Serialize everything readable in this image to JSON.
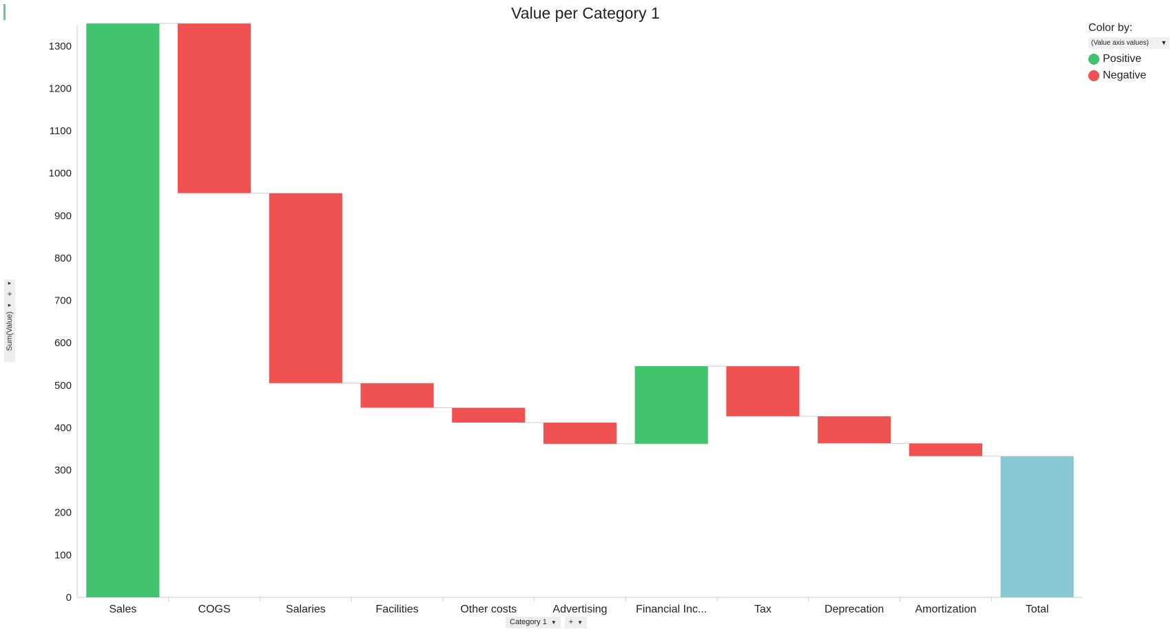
{
  "chart_data": {
    "type": "waterfall",
    "title": "Value per Category 1",
    "xlabel": "Category 1",
    "ylabel": "Sum(Value)",
    "ylim": [
      0,
      1350
    ],
    "yticks": [
      0,
      100,
      200,
      300,
      400,
      500,
      600,
      700,
      800,
      900,
      1000,
      1100,
      1200,
      1300
    ],
    "grid": false,
    "legend_position": "top-right",
    "categories": [
      "Sales",
      "COGS",
      "Salaries",
      "Facilities",
      "Other costs",
      "Advertising",
      "Financial Inc...",
      "Tax",
      "Deprecation",
      "Amortization",
      "Total"
    ],
    "values": [
      1353,
      -400,
      -448,
      -58,
      -35,
      -50,
      183,
      -118,
      -64,
      -30,
      333
    ],
    "kinds": [
      "positive",
      "negative",
      "negative",
      "negative",
      "negative",
      "negative",
      "positive",
      "negative",
      "negative",
      "negative",
      "total"
    ]
  },
  "legend": {
    "title": "Color by:",
    "selector_value": "(Value axis values)",
    "items": [
      {
        "label": "Positive",
        "color": "#42c46f"
      },
      {
        "label": "Negative",
        "color": "#f05252"
      }
    ]
  },
  "colors": {
    "positive": "#42c46f",
    "negative": "#f05252",
    "total": "#8ac9d3",
    "axis": "#cccccc",
    "connector": "#cccccc"
  },
  "x_axis_selector": {
    "label": "Category 1",
    "add_label": "+"
  },
  "y_axis_selector": {
    "label": "Sum(Value)",
    "add_label": "+"
  }
}
